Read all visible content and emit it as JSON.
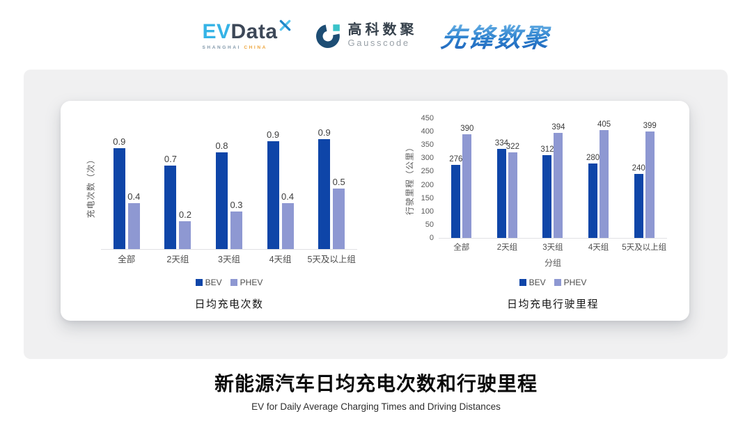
{
  "header": {
    "evdata_logo": {
      "ev": "EV",
      "data": "Data",
      "sub_left": "SHANGHAI",
      "sub_right": "CHINA"
    },
    "gausscode_logo": {
      "name_cn": "高科数聚",
      "name_en": "Gausscode"
    },
    "pioneer_logo": {
      "text": "先锋数聚"
    }
  },
  "colors": {
    "bev": "#0e45a8",
    "phev": "#8e98d2",
    "panel_bg": "#f0f0f1",
    "card_bg": "#ffffff",
    "axis_line": "#e1e1e4",
    "pioneer_blue": "#2f83cf",
    "evdata_cyan": "#35b3e6",
    "gausscode_navy": "#1d4d74",
    "gausscode_teal": "#3ac3c9"
  },
  "chart_data": [
    {
      "type": "bar",
      "title": "日均充电次数",
      "ylabel": "充电次数（次）",
      "xlabel": "",
      "categories": [
        "全部",
        "2天组",
        "3天组",
        "4天组",
        "5天及以上组"
      ],
      "series": [
        {
          "name": "BEV",
          "color": "#0e45a8",
          "values": [
            0.9,
            0.7,
            0.8,
            0.9,
            0.9
          ],
          "values_est": [
            0.88,
            0.73,
            0.84,
            0.94,
            0.96
          ]
        },
        {
          "name": "PHEV",
          "color": "#8e98d2",
          "values": [
            0.4,
            0.2,
            0.3,
            0.4,
            0.5
          ],
          "values_est": [
            0.4,
            0.24,
            0.33,
            0.4,
            0.53
          ]
        }
      ],
      "ylim": [
        0,
        1.0
      ],
      "y_axis_labels_visible": false,
      "grid": false,
      "legend_position": "bottom"
    },
    {
      "type": "bar",
      "title": "日均充电行驶里程",
      "ylabel": "行驶里程（公里）",
      "xlabel": "分组",
      "categories": [
        "全部",
        "2天组",
        "3天组",
        "4天组",
        "5天及以上组"
      ],
      "series": [
        {
          "name": "BEV",
          "color": "#0e45a8",
          "values": [
            276,
            334,
            312,
            280,
            240
          ]
        },
        {
          "name": "PHEV",
          "color": "#8e98d2",
          "values": [
            390,
            322,
            394,
            405,
            399
          ]
        }
      ],
      "ylim": [
        0,
        450
      ],
      "y_ticks": [
        0,
        50,
        100,
        150,
        200,
        250,
        300,
        350,
        400,
        450
      ],
      "grid": false,
      "legend_position": "bottom"
    }
  ],
  "footer": {
    "title": "新能源汽车日均充电次数和行驶里程",
    "subtitle": "EV for Daily Average Charging Times and Driving Distances"
  }
}
